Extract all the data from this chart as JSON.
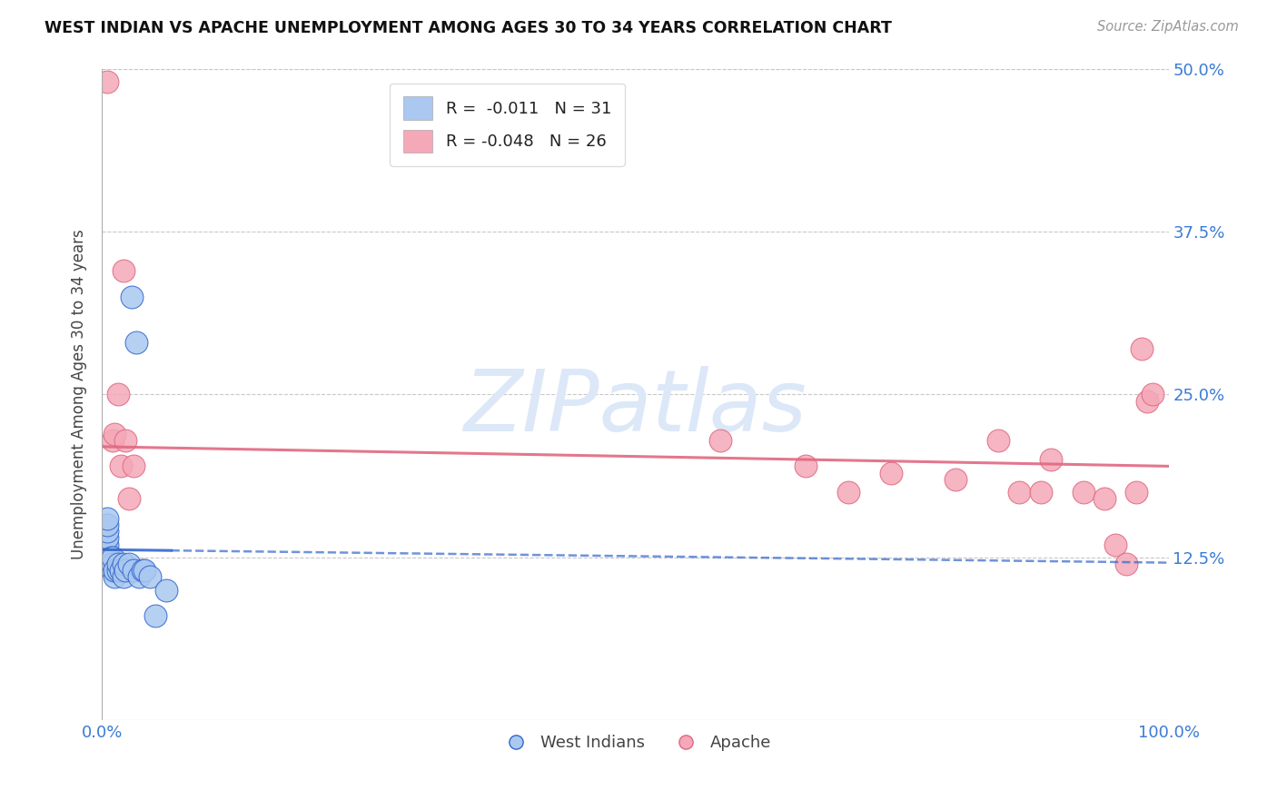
{
  "title": "WEST INDIAN VS APACHE UNEMPLOYMENT AMONG AGES 30 TO 34 YEARS CORRELATION CHART",
  "source": "Source: ZipAtlas.com",
  "ylabel": "Unemployment Among Ages 30 to 34 years",
  "xlim": [
    0,
    1.0
  ],
  "ylim": [
    0,
    0.5
  ],
  "xticks": [
    0.0,
    0.25,
    0.5,
    0.75,
    1.0
  ],
  "xtick_labels": [
    "0.0%",
    "",
    "",
    "",
    "100.0%"
  ],
  "yticks": [
    0.0,
    0.125,
    0.25,
    0.375,
    0.5
  ],
  "ytick_labels": [
    "",
    "12.5%",
    "25.0%",
    "37.5%",
    "50.0%"
  ],
  "west_indian_R": "-0.011",
  "west_indian_N": "31",
  "apache_R": "-0.048",
  "apache_N": "26",
  "background_color": "#ffffff",
  "grid_color": "#c8c8c8",
  "west_indian_color": "#aac8f0",
  "apache_color": "#f4a8b8",
  "west_indian_line_color": "#3366cc",
  "apache_line_color": "#e06880",
  "watermark_text": "ZIPatlas",
  "watermark_color": "#dce8f8",
  "west_indian_x": [
    0.005,
    0.005,
    0.005,
    0.005,
    0.005,
    0.005,
    0.005,
    0.005,
    0.008,
    0.008,
    0.01,
    0.01,
    0.01,
    0.012,
    0.012,
    0.015,
    0.015,
    0.018,
    0.02,
    0.02,
    0.022,
    0.025,
    0.028,
    0.03,
    0.032,
    0.035,
    0.038,
    0.04,
    0.045,
    0.05,
    0.06
  ],
  "west_indian_y": [
    0.125,
    0.13,
    0.13,
    0.135,
    0.14,
    0.145,
    0.15,
    0.155,
    0.12,
    0.125,
    0.115,
    0.12,
    0.125,
    0.11,
    0.115,
    0.115,
    0.12,
    0.115,
    0.11,
    0.12,
    0.115,
    0.12,
    0.325,
    0.115,
    0.29,
    0.11,
    0.115,
    0.115,
    0.11,
    0.08,
    0.1
  ],
  "apache_x": [
    0.005,
    0.01,
    0.012,
    0.015,
    0.018,
    0.02,
    0.022,
    0.025,
    0.03,
    0.58,
    0.66,
    0.7,
    0.74,
    0.8,
    0.84,
    0.86,
    0.88,
    0.89,
    0.92,
    0.94,
    0.95,
    0.96,
    0.97,
    0.975,
    0.98,
    0.985
  ],
  "apache_y": [
    0.49,
    0.215,
    0.22,
    0.25,
    0.195,
    0.345,
    0.215,
    0.17,
    0.195,
    0.215,
    0.195,
    0.175,
    0.19,
    0.185,
    0.215,
    0.175,
    0.175,
    0.2,
    0.175,
    0.17,
    0.135,
    0.12,
    0.175,
    0.285,
    0.245,
    0.25
  ],
  "wi_line_x0": 0.0,
  "wi_line_x_solid_end": 0.065,
  "wi_line_x1": 1.0,
  "wi_line_y0": 0.131,
  "wi_line_y1": 0.121,
  "ap_line_x0": 0.0,
  "ap_line_x1": 1.0,
  "ap_line_y0": 0.21,
  "ap_line_y1": 0.195
}
